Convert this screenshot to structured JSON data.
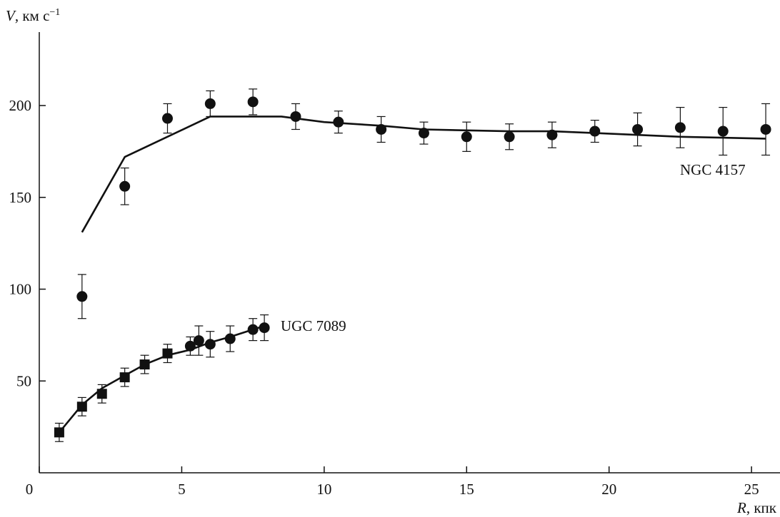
{
  "chart_data": {
    "type": "scatter",
    "title": "",
    "xlabel": "R, кпк",
    "ylabel": "V, км с−1",
    "ylabel_var": "V",
    "ylabel_unit": ", км с",
    "ylabel_exp": "−1",
    "xlabel_var": "R",
    "xlabel_unit": ", кпк",
    "xlim": [
      0,
      26
    ],
    "ylim": [
      0,
      240
    ],
    "x_ticks": [
      0,
      5,
      10,
      15,
      20,
      25
    ],
    "y_ticks": [
      50,
      100,
      150,
      200
    ],
    "grid": false,
    "series": [
      {
        "name": "NGC 4157",
        "marker": "circle",
        "points": [
          {
            "x": 1.5,
            "y": 96,
            "err": 12
          },
          {
            "x": 3.0,
            "y": 156,
            "err": 10
          },
          {
            "x": 4.5,
            "y": 193,
            "err": 8
          },
          {
            "x": 6.0,
            "y": 201,
            "err": 7
          },
          {
            "x": 7.5,
            "y": 202,
            "err": 7
          },
          {
            "x": 9.0,
            "y": 194,
            "err": 7
          },
          {
            "x": 10.5,
            "y": 191,
            "err": 6
          },
          {
            "x": 12.0,
            "y": 187,
            "err": 7
          },
          {
            "x": 13.5,
            "y": 185,
            "err": 6
          },
          {
            "x": 15.0,
            "y": 183,
            "err": 8
          },
          {
            "x": 16.5,
            "y": 183,
            "err": 7
          },
          {
            "x": 18.0,
            "y": 184,
            "err": 7
          },
          {
            "x": 19.5,
            "y": 186,
            "err": 6
          },
          {
            "x": 21.0,
            "y": 187,
            "err": 9
          },
          {
            "x": 22.5,
            "y": 188,
            "err": 11
          },
          {
            "x": 24.0,
            "y": 186,
            "err": 13
          },
          {
            "x": 25.5,
            "y": 187,
            "err": 14
          }
        ],
        "model_curve": [
          [
            1.5,
            131
          ],
          [
            3.0,
            172
          ],
          [
            6.0,
            194
          ],
          [
            8.5,
            194
          ],
          [
            10.0,
            191
          ],
          [
            12.0,
            189
          ],
          [
            13.5,
            187
          ],
          [
            16.5,
            186
          ],
          [
            18.0,
            186
          ],
          [
            19.5,
            185
          ],
          [
            21.0,
            184
          ],
          [
            22.5,
            183
          ],
          [
            25.5,
            182
          ]
        ]
      },
      {
        "name": "UGC 7089",
        "marker": "mixed",
        "points": [
          {
            "x": 0.7,
            "y": 22,
            "err": 5,
            "marker": "square"
          },
          {
            "x": 1.5,
            "y": 36,
            "err": 5,
            "marker": "square"
          },
          {
            "x": 2.2,
            "y": 43,
            "err": 5,
            "marker": "square"
          },
          {
            "x": 3.0,
            "y": 52,
            "err": 5,
            "marker": "square"
          },
          {
            "x": 3.7,
            "y": 59,
            "err": 5,
            "marker": "square"
          },
          {
            "x": 4.5,
            "y": 65,
            "err": 5,
            "marker": "square"
          },
          {
            "x": 5.3,
            "y": 69,
            "err": 5,
            "marker": "circle"
          },
          {
            "x": 5.6,
            "y": 72,
            "err": 8,
            "marker": "circle"
          },
          {
            "x": 6.0,
            "y": 70,
            "err": 7,
            "marker": "circle"
          },
          {
            "x": 6.7,
            "y": 73,
            "err": 7,
            "marker": "circle"
          },
          {
            "x": 7.5,
            "y": 78,
            "err": 6,
            "marker": "circle"
          },
          {
            "x": 7.9,
            "y": 79,
            "err": 7,
            "marker": "circle"
          }
        ],
        "model_curve": [
          [
            0.7,
            22
          ],
          [
            1.5,
            37
          ],
          [
            2.2,
            46
          ],
          [
            3.0,
            53
          ],
          [
            3.7,
            59
          ],
          [
            4.5,
            64
          ],
          [
            5.3,
            67
          ],
          [
            6.0,
            71
          ],
          [
            6.7,
            74
          ],
          [
            7.5,
            78
          ],
          [
            7.9,
            80
          ]
        ]
      }
    ]
  }
}
